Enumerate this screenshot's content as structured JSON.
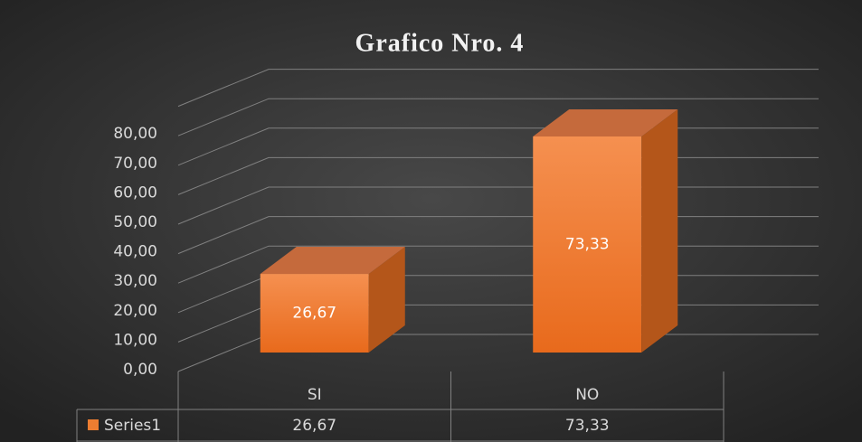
{
  "chart_data": {
    "type": "bar3d",
    "title": "Grafico Nro. 4",
    "categories": [
      "SI",
      "NO"
    ],
    "series": [
      {
        "name": "Series1",
        "color": "#ed7d31",
        "values": [
          26.67,
          73.33
        ],
        "value_labels": [
          "26,67",
          "73,33"
        ]
      }
    ],
    "ylim": [
      0,
      90
    ],
    "yticks": [
      {
        "value": 0,
        "label": "0,00"
      },
      {
        "value": 10,
        "label": "10,00"
      },
      {
        "value": 20,
        "label": "20,00"
      },
      {
        "value": 30,
        "label": "30,00"
      },
      {
        "value": 40,
        "label": "40,00"
      },
      {
        "value": 50,
        "label": "50,00"
      },
      {
        "value": 60,
        "label": "60,00"
      },
      {
        "value": 70,
        "label": "70,00"
      },
      {
        "value": 80,
        "label": "80,00"
      }
    ],
    "grid": true,
    "data_table": true
  }
}
